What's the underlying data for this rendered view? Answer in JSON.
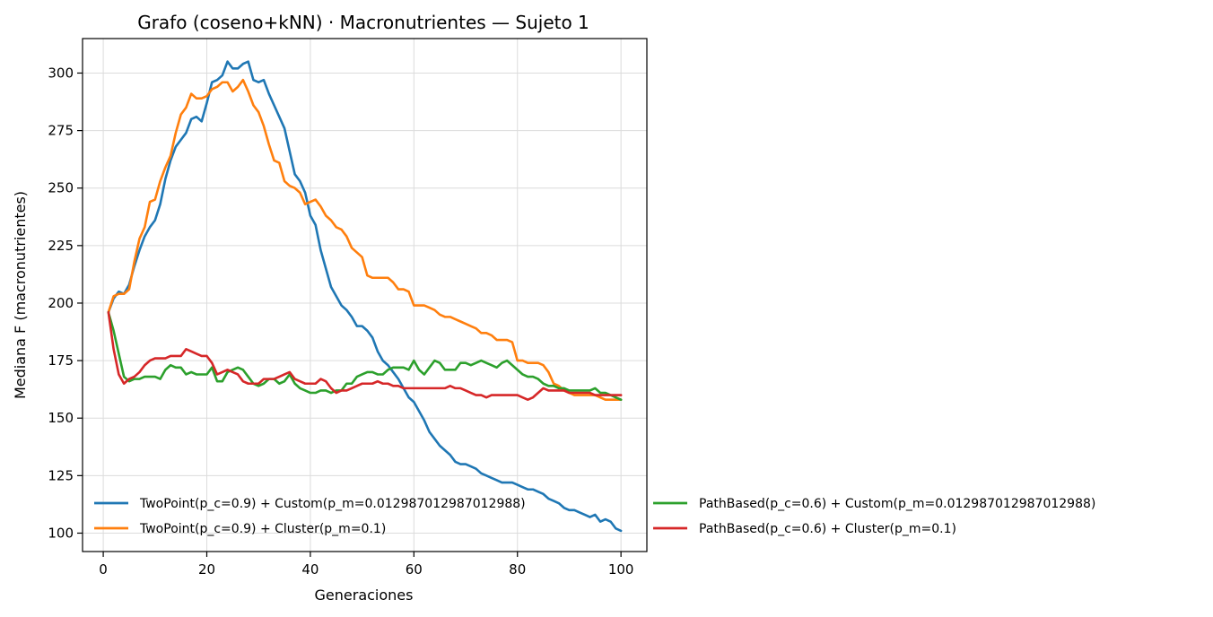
{
  "chart_data": {
    "type": "line",
    "title": "Grafo (coseno+kNN) · Macronutrientes — Sujeto 1",
    "xlabel": "Generaciones",
    "ylabel": "Mediana F (macronutrientes)",
    "xlim": [
      -4,
      105
    ],
    "ylim": [
      92,
      315
    ],
    "xticks": [
      0,
      20,
      40,
      60,
      80,
      100
    ],
    "yticks": [
      100,
      125,
      150,
      175,
      200,
      225,
      250,
      275,
      300
    ],
    "grid": true,
    "legend_position": "bottom, two columns",
    "x": [
      1,
      2,
      3,
      4,
      5,
      6,
      7,
      8,
      9,
      10,
      11,
      12,
      13,
      14,
      15,
      16,
      17,
      18,
      19,
      20,
      21,
      22,
      23,
      24,
      25,
      26,
      27,
      28,
      29,
      30,
      31,
      32,
      33,
      34,
      35,
      36,
      37,
      38,
      39,
      40,
      41,
      42,
      43,
      44,
      45,
      46,
      47,
      48,
      49,
      50,
      51,
      52,
      53,
      54,
      55,
      56,
      57,
      58,
      59,
      60,
      61,
      62,
      63,
      64,
      65,
      66,
      67,
      68,
      69,
      70,
      71,
      72,
      73,
      74,
      75,
      76,
      77,
      78,
      79,
      80,
      81,
      82,
      83,
      84,
      85,
      86,
      87,
      88,
      89,
      90,
      91,
      92,
      93,
      94,
      95,
      96,
      97,
      98,
      99,
      100
    ],
    "series": [
      {
        "name": "TwoPoint(p_c=0.9) + Custom(p_m=0.012987012987012988)",
        "color": "#1f77b4",
        "values": [
          196,
          202,
          205,
          204,
          208,
          216,
          223,
          229,
          233,
          236,
          243,
          254,
          262,
          268,
          271,
          274,
          280,
          281,
          279,
          287,
          296,
          297,
          299,
          305,
          302,
          302,
          304,
          305,
          297,
          296,
          297,
          291,
          286,
          281,
          276,
          266,
          256,
          253,
          248,
          238,
          234,
          223,
          215,
          207,
          203,
          199,
          197,
          194,
          190,
          190,
          188,
          185,
          179,
          175,
          173,
          170,
          167,
          163,
          159,
          157,
          153,
          149,
          144,
          141,
          138,
          136,
          134,
          131,
          130,
          130,
          129,
          128,
          126,
          125,
          124,
          123,
          122,
          122,
          122,
          121,
          120,
          119,
          119,
          118,
          117,
          115,
          114,
          113,
          111,
          110,
          110,
          109,
          108,
          107,
          108,
          105,
          106,
          105,
          102,
          101
        ]
      },
      {
        "name": "TwoPoint(p_c=0.9) + Cluster(p_m=0.1)",
        "color": "#ff7f0e",
        "values": [
          196,
          203,
          204,
          204,
          206,
          218,
          228,
          233,
          244,
          245,
          253,
          259,
          264,
          274,
          282,
          285,
          291,
          289,
          289,
          290,
          293,
          294,
          296,
          296,
          292,
          294,
          297,
          292,
          286,
          283,
          277,
          269,
          262,
          261,
          253,
          251,
          250,
          248,
          243,
          244,
          245,
          242,
          238,
          236,
          233,
          232,
          229,
          224,
          222,
          220,
          212,
          211,
          211,
          211,
          211,
          209,
          206,
          206,
          205,
          199,
          199,
          199,
          198,
          197,
          195,
          194,
          194,
          193,
          192,
          191,
          190,
          189,
          187,
          187,
          186,
          184,
          184,
          184,
          183,
          175,
          175,
          174,
          174,
          174,
          173,
          170,
          165,
          164,
          162,
          161,
          160,
          160,
          160,
          160,
          160,
          159,
          158,
          158,
          158,
          158
        ]
      },
      {
        "name": "PathBased(p_c=0.6) + Custom(p_m=0.012987012987012988)",
        "color": "#2ca02c",
        "values": [
          196,
          188,
          178,
          168,
          166,
          167,
          167,
          168,
          168,
          168,
          167,
          171,
          173,
          172,
          172,
          169,
          170,
          169,
          169,
          169,
          172,
          166,
          166,
          170,
          171,
          172,
          171,
          168,
          165,
          164,
          165,
          167,
          167,
          165,
          166,
          169,
          165,
          163,
          162,
          161,
          161,
          162,
          162,
          161,
          162,
          162,
          165,
          165,
          168,
          169,
          170,
          170,
          169,
          169,
          171,
          172,
          172,
          172,
          171,
          175,
          171,
          169,
          172,
          175,
          174,
          171,
          171,
          171,
          174,
          174,
          173,
          174,
          175,
          174,
          173,
          172,
          174,
          175,
          173,
          171,
          169,
          168,
          168,
          167,
          165,
          164,
          164,
          163,
          163,
          162,
          162,
          162,
          162,
          162,
          163,
          161,
          161,
          160,
          159,
          158
        ]
      },
      {
        "name": "PathBased(p_c=0.6) + Cluster(p_m=0.1)",
        "color": "#d62728",
        "values": [
          196,
          180,
          169,
          165,
          167,
          168,
          170,
          173,
          175,
          176,
          176,
          176,
          177,
          177,
          177,
          180,
          179,
          178,
          177,
          177,
          174,
          169,
          170,
          171,
          170,
          169,
          166,
          165,
          165,
          165,
          167,
          167,
          167,
          168,
          169,
          170,
          167,
          166,
          165,
          165,
          165,
          167,
          166,
          163,
          161,
          162,
          162,
          163,
          164,
          165,
          165,
          165,
          166,
          165,
          165,
          164,
          164,
          163,
          163,
          163,
          163,
          163,
          163,
          163,
          163,
          163,
          164,
          163,
          163,
          162,
          161,
          160,
          160,
          159,
          160,
          160,
          160,
          160,
          160,
          160,
          159,
          158,
          159,
          161,
          163,
          162,
          162,
          162,
          162,
          161,
          161,
          161,
          161,
          161,
          160,
          160,
          160,
          160,
          160,
          160
        ]
      }
    ]
  }
}
